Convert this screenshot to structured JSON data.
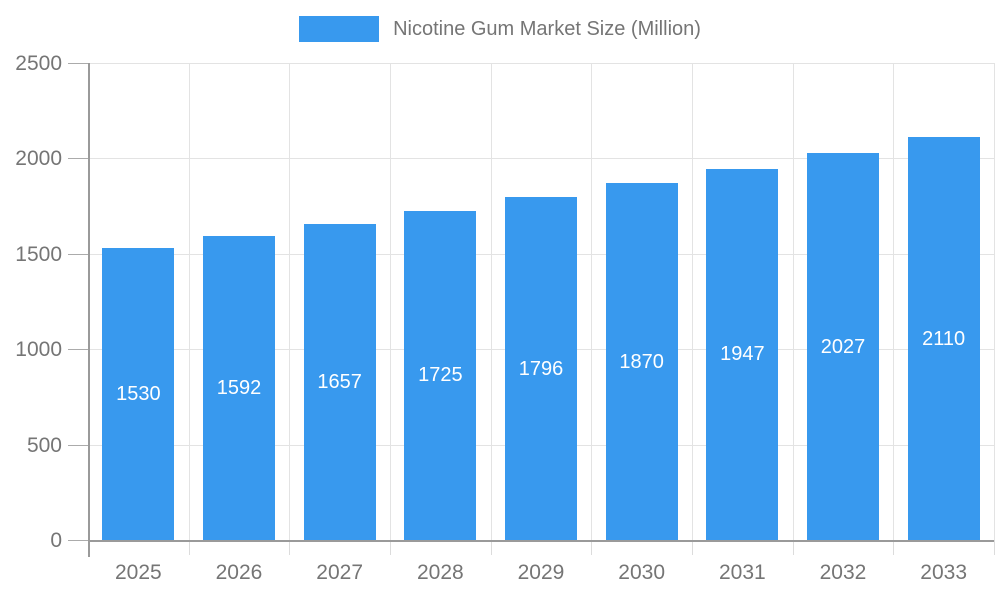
{
  "legend": {
    "label": "Nicotine Gum Market Size (Million)",
    "swatch_color": "#3899ee"
  },
  "chart_data": {
    "type": "bar",
    "title": "Nicotine Gum Market Size (Million)",
    "series": [
      {
        "name": "Nicotine Gum Market Size (Million)",
        "values": [
          1530,
          1592,
          1657,
          1725,
          1796,
          1870,
          1947,
          2027,
          2110
        ]
      }
    ],
    "categories": [
      "2025",
      "2026",
      "2027",
      "2028",
      "2029",
      "2030",
      "2031",
      "2032",
      "2033"
    ],
    "value_labels": [
      "1530",
      "1592",
      "1657",
      "1725",
      "1796",
      "1870",
      "1947",
      "2027",
      "2110"
    ],
    "ylim": [
      0,
      2500
    ],
    "yticks": [
      0,
      500,
      1000,
      1500,
      2000,
      2500
    ],
    "ytick_labels": [
      "0",
      "500",
      "1000",
      "1500",
      "2000",
      "2500"
    ],
    "xlabel": "",
    "ylabel": "",
    "grid": true,
    "legend_position": "top",
    "bar_color": "#3899ee",
    "bar_value_text_color": "#ffffff",
    "axis_text_color": "#757575"
  }
}
